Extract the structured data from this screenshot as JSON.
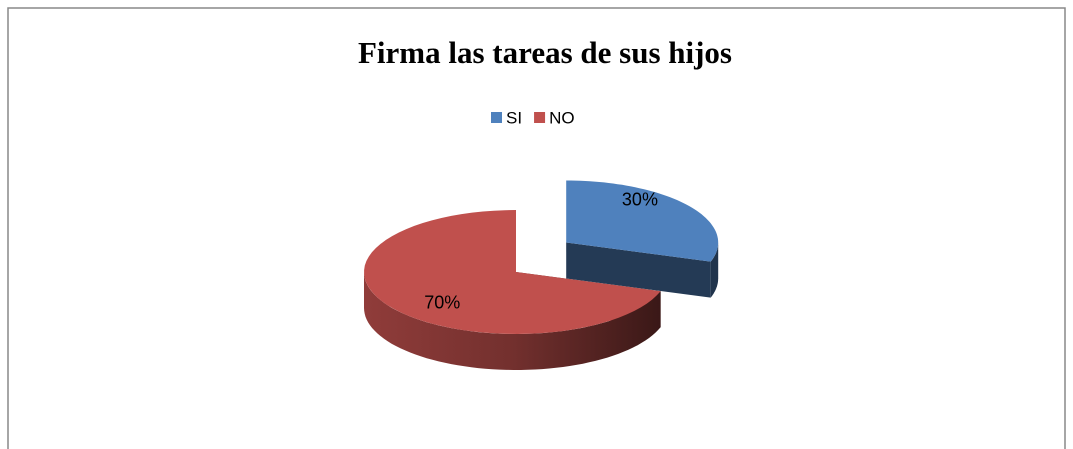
{
  "chart_data": {
    "type": "pie",
    "title": "Firma las tareas de sus hijos",
    "categories": [
      "SI",
      "NO"
    ],
    "values": [
      30,
      70
    ],
    "value_labels": [
      "30%",
      "70%"
    ],
    "colors": [
      "#4f81bd",
      "#c0504d"
    ],
    "legend": "top"
  }
}
